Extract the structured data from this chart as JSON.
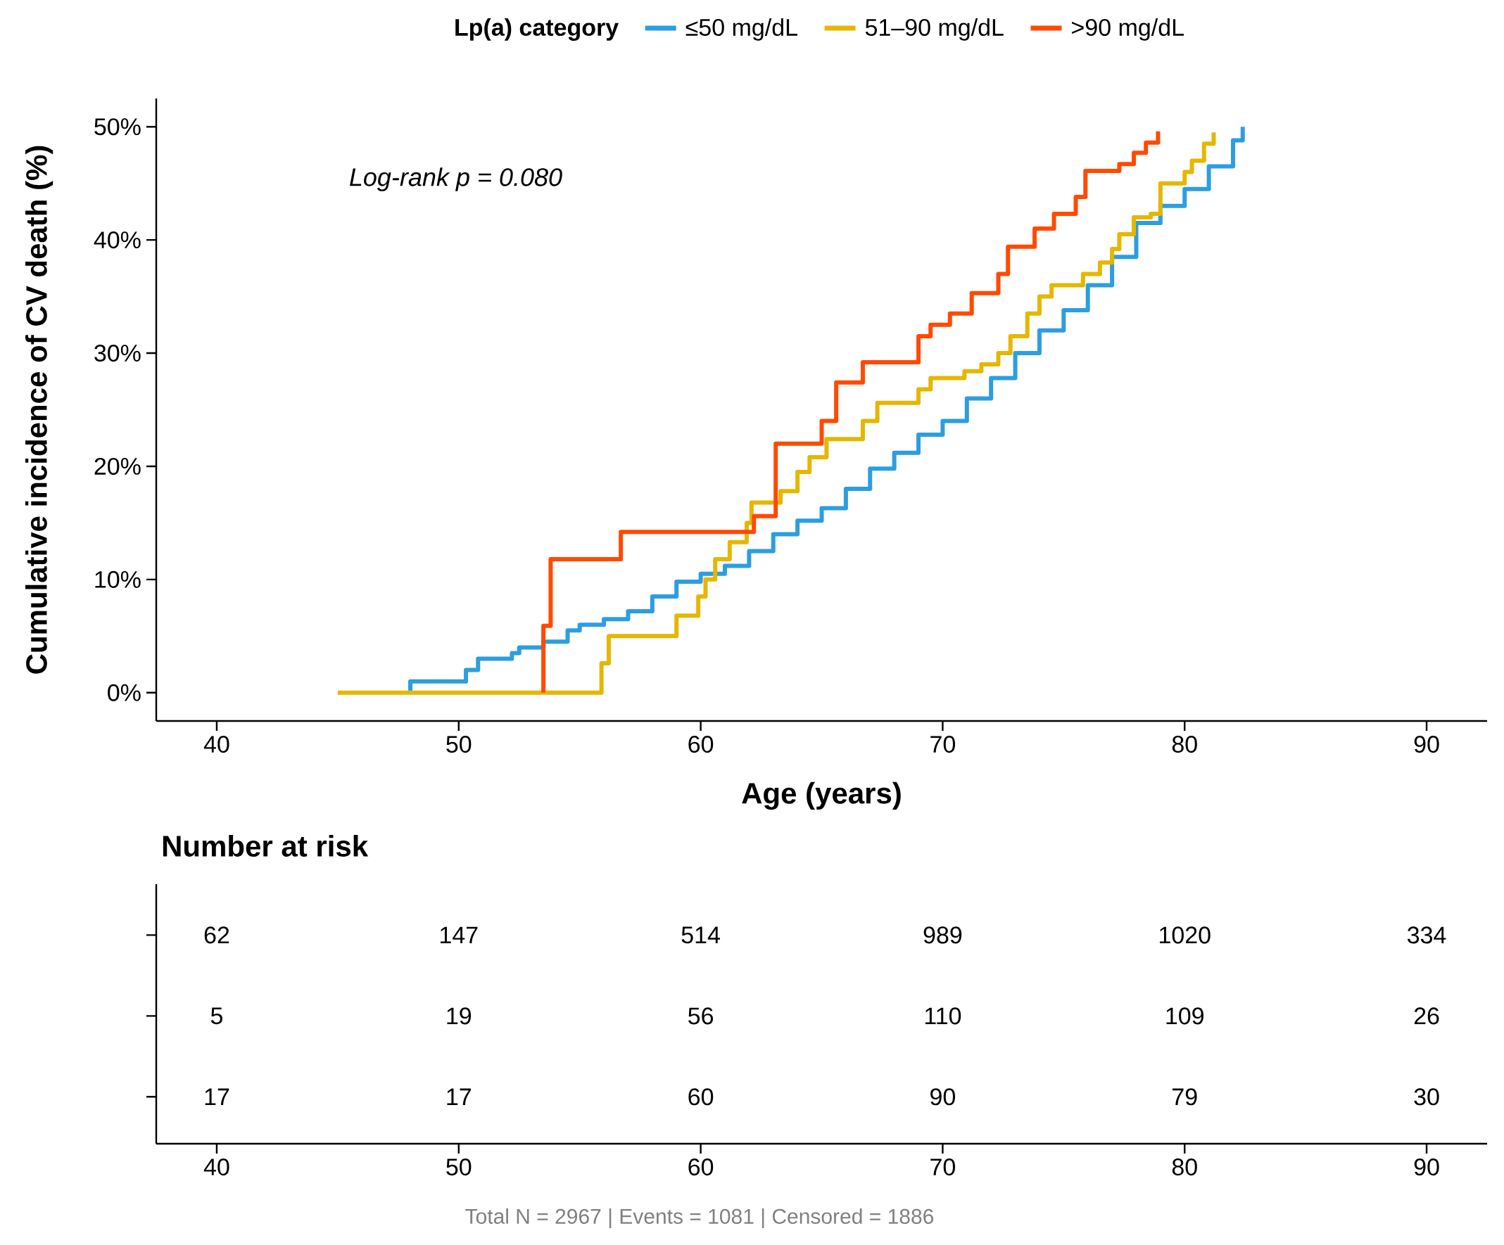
{
  "chart_data": [
    {
      "type": "step",
      "legend_title": "Lp(a) category",
      "legend": "top",
      "xlabel": "Age (years)",
      "ylabel": "Cumulative incidence of CV death (%)",
      "annotations": [
        "Log-rank p = 0.080"
      ],
      "xlim": [
        37.5,
        92.5
      ],
      "ylim": [
        -2.5,
        52.5
      ],
      "xticks": [
        40,
        50,
        60,
        70,
        80,
        90
      ],
      "yticks": [
        {
          "value": 0,
          "label": "0%"
        },
        {
          "value": 10,
          "label": "10%"
        },
        {
          "value": 20,
          "label": "20%"
        },
        {
          "value": 30,
          "label": "30%"
        },
        {
          "value": 40,
          "label": "40%"
        },
        {
          "value": 50,
          "label": "50%"
        }
      ],
      "series": [
        {
          "name": "≤50 mg/dL",
          "color": "#2c9ee0",
          "x": [
            48.0,
            48.0,
            50.0,
            50.3,
            50.8,
            52.2,
            52.5,
            53.5,
            54.5,
            55.0,
            56.0,
            57.0,
            58.0,
            59.0,
            60.0,
            61.0,
            62.0,
            63.0,
            64.0,
            65.0,
            66.0,
            67.0,
            68.0,
            69.0,
            70.0,
            71.0,
            72.0,
            73.0,
            74.0,
            75.0,
            76.0,
            77.0,
            78.0,
            79.0,
            80.0,
            81.0,
            82.0,
            82.4
          ],
          "values": [
            0,
            1.0,
            1.0,
            2.0,
            3.0,
            3.5,
            4.0,
            4.5,
            5.5,
            6.0,
            6.5,
            7.2,
            8.5,
            9.8,
            10.5,
            11.2,
            12.5,
            14.0,
            15.2,
            16.3,
            18.0,
            19.8,
            21.2,
            22.8,
            24.0,
            26.0,
            27.8,
            30.0,
            32.0,
            33.8,
            36.0,
            38.5,
            41.5,
            43.0,
            44.5,
            46.5,
            48.8,
            50.0
          ]
        },
        {
          "name": "51–90 mg/dL",
          "color": "#e5b700",
          "x": [
            45.0,
            55.9,
            55.9,
            56.2,
            59.0,
            59.9,
            60.2,
            60.6,
            61.2,
            61.9,
            62.1,
            63.3,
            64.0,
            64.5,
            65.2,
            66.7,
            67.3,
            69.0,
            69.5,
            70.9,
            71.6,
            72.3,
            72.8,
            73.5,
            74.0,
            74.5,
            75.8,
            76.5,
            77.0,
            77.3,
            77.9,
            78.6,
            79.0,
            80.0,
            80.3,
            80.8,
            81.2
          ],
          "values": [
            0,
            0,
            2.6,
            5.0,
            6.8,
            8.5,
            10.0,
            11.8,
            13.3,
            15.0,
            16.8,
            17.8,
            19.5,
            20.8,
            22.4,
            24.0,
            25.6,
            26.8,
            27.8,
            28.4,
            29.0,
            30.0,
            31.5,
            33.5,
            35.0,
            36.0,
            37.0,
            38.0,
            39.2,
            40.5,
            42.0,
            42.3,
            45.0,
            46.0,
            47.0,
            48.5,
            49.5
          ]
        },
        {
          "name": ">90 mg/dL",
          "color": "#ff4a00",
          "x": [
            53.5,
            53.5,
            53.8,
            56.7,
            62.2,
            63.1,
            65.0,
            65.6,
            66.7,
            69.0,
            69.5,
            70.3,
            71.2,
            72.3,
            72.7,
            73.8,
            74.6,
            75.5,
            75.9,
            77.3,
            77.9,
            78.4,
            78.9
          ],
          "values": [
            0,
            5.9,
            11.8,
            14.2,
            15.6,
            22.0,
            24.0,
            27.4,
            29.2,
            31.5,
            32.5,
            33.5,
            35.3,
            37.0,
            39.4,
            41.0,
            42.3,
            43.8,
            46.1,
            46.7,
            47.7,
            48.6,
            49.6
          ]
        }
      ]
    },
    {
      "type": "other",
      "title": "Number at risk",
      "annotations": [
        "Total N = 2967 | Events = 1081 | Censored = 1886"
      ],
      "data_labels": true,
      "categories": [
        "40",
        "50",
        "60",
        "70",
        "80",
        "90"
      ],
      "series": [
        {
          "values": [
            62,
            147,
            514,
            989,
            1020,
            334
          ]
        },
        {
          "values": [
            5,
            19,
            56,
            110,
            109,
            26
          ]
        },
        {
          "values": [
            17,
            17,
            60,
            90,
            79,
            30
          ]
        }
      ]
    }
  ]
}
